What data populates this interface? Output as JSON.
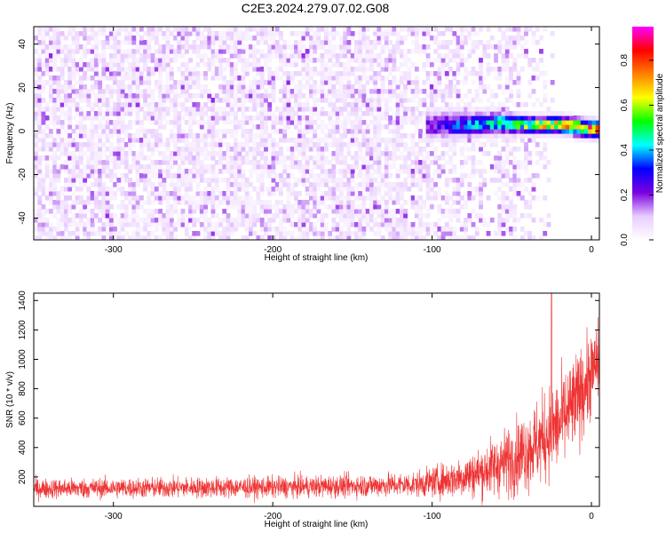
{
  "title": "C2E3.2024.279.07.02.G08",
  "chart_data": [
    {
      "type": "heatmap",
      "xlabel": "Height of straight line (km)",
      "ylabel": "Frequency (Hz)",
      "xlim": [
        -350,
        5
      ],
      "ylim": [
        -50,
        48
      ],
      "xticks": [
        -300,
        -200,
        -100,
        0
      ],
      "yticks": [
        -40,
        -20,
        0,
        20,
        40
      ],
      "colorbar": {
        "label": "Normalized spectral amplitude",
        "range": [
          0,
          0.95
        ],
        "ticks": [
          0.0,
          0.2,
          0.4,
          0.6,
          0.8
        ],
        "tick_labels": [
          "0.0",
          "0.2",
          "0.4",
          "0.6",
          "0.8"
        ],
        "colors": [
          "#ffffff",
          "#e8ccff",
          "#7a00e0",
          "#0000ff",
          "#00ffff",
          "#00ff00",
          "#ffff00",
          "#ff8000",
          "#ff0000",
          "#ff00ff"
        ]
      },
      "features": {
        "noise_extent_x": [
          -350,
          -60
        ],
        "noise_level": 0.12,
        "signal_start_x": -105,
        "signal_track": [
          {
            "x": -105,
            "f": 3
          },
          {
            "x": -80,
            "f": 3
          },
          {
            "x": -60,
            "f": 4
          },
          {
            "x": -40,
            "f": 3
          },
          {
            "x": -20,
            "f": 3
          },
          {
            "x": -10,
            "f": 2
          },
          {
            "x": 0,
            "f": 1
          }
        ],
        "signal_peak": 0.9
      }
    },
    {
      "type": "line",
      "xlabel": "Height of straight line (km)",
      "ylabel": "SNR (10 * v/v)",
      "xlim": [
        -350,
        5
      ],
      "ylim": [
        0,
        1450
      ],
      "xticks": [
        -300,
        -200,
        -100,
        0
      ],
      "yticks": [
        200,
        400,
        600,
        800,
        1000,
        1200,
        1400
      ],
      "color": "#ee3333",
      "envelope": [
        {
          "x": -350,
          "mean": 120,
          "spread": 80
        },
        {
          "x": -300,
          "mean": 125,
          "spread": 80
        },
        {
          "x": -200,
          "mean": 130,
          "spread": 85
        },
        {
          "x": -150,
          "mean": 140,
          "spread": 90
        },
        {
          "x": -110,
          "mean": 150,
          "spread": 100
        },
        {
          "x": -90,
          "mean": 180,
          "spread": 140
        },
        {
          "x": -70,
          "mean": 230,
          "spread": 200
        },
        {
          "x": -50,
          "mean": 320,
          "spread": 280
        },
        {
          "x": -35,
          "mean": 420,
          "spread": 340
        },
        {
          "x": -20,
          "mean": 560,
          "spread": 380
        },
        {
          "x": -10,
          "mean": 700,
          "spread": 380
        },
        {
          "x": 0,
          "mean": 900,
          "spread": 340
        },
        {
          "x": 5,
          "mean": 1000,
          "spread": 300
        }
      ],
      "peak": {
        "x": -25,
        "y": 1450
      }
    }
  ]
}
